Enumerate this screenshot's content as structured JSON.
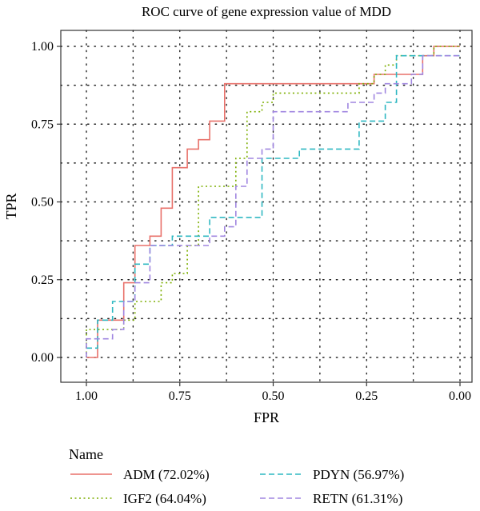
{
  "chart_data": {
    "type": "line",
    "title": "ROC curve of gene expression value of MDD",
    "xlabel": "FPR",
    "ylabel": "TPR",
    "xlim": [
      1.0,
      0.0
    ],
    "ylim": [
      0.0,
      1.0
    ],
    "x_reversed": true,
    "x_ticks": [
      "1.00",
      "0.75",
      "0.50",
      "0.25",
      "0.00"
    ],
    "y_ticks": [
      "0.00",
      "0.25",
      "0.50",
      "0.75",
      "1.00"
    ],
    "grid": "dotted",
    "legend_title": "Name",
    "legend_position": "bottom",
    "series": [
      {
        "name": "ADM (72.02%)",
        "color": "#e8716a",
        "dash": "solid",
        "points": [
          [
            1.0,
            0.0
          ],
          [
            0.97,
            0.0
          ],
          [
            0.97,
            0.12
          ],
          [
            0.9,
            0.12
          ],
          [
            0.9,
            0.24
          ],
          [
            0.87,
            0.24
          ],
          [
            0.87,
            0.36
          ],
          [
            0.83,
            0.36
          ],
          [
            0.83,
            0.39
          ],
          [
            0.8,
            0.39
          ],
          [
            0.8,
            0.48
          ],
          [
            0.77,
            0.48
          ],
          [
            0.77,
            0.61
          ],
          [
            0.73,
            0.61
          ],
          [
            0.73,
            0.67
          ],
          [
            0.7,
            0.67
          ],
          [
            0.7,
            0.7
          ],
          [
            0.67,
            0.7
          ],
          [
            0.67,
            0.76
          ],
          [
            0.63,
            0.76
          ],
          [
            0.63,
            0.88
          ],
          [
            0.23,
            0.88
          ],
          [
            0.23,
            0.91
          ],
          [
            0.1,
            0.91
          ],
          [
            0.1,
            0.97
          ],
          [
            0.07,
            0.97
          ],
          [
            0.07,
            1.0
          ],
          [
            0.0,
            1.0
          ]
        ]
      },
      {
        "name": "IGF2 (64.04%)",
        "color": "#7cae00",
        "dash": "dotted",
        "points": [
          [
            1.0,
            0.0
          ],
          [
            1.0,
            0.09
          ],
          [
            0.9,
            0.09
          ],
          [
            0.9,
            0.12
          ],
          [
            0.87,
            0.12
          ],
          [
            0.87,
            0.18
          ],
          [
            0.8,
            0.18
          ],
          [
            0.8,
            0.24
          ],
          [
            0.77,
            0.24
          ],
          [
            0.77,
            0.27
          ],
          [
            0.73,
            0.27
          ],
          [
            0.73,
            0.36
          ],
          [
            0.7,
            0.36
          ],
          [
            0.7,
            0.55
          ],
          [
            0.6,
            0.55
          ],
          [
            0.6,
            0.64
          ],
          [
            0.57,
            0.64
          ],
          [
            0.57,
            0.79
          ],
          [
            0.53,
            0.79
          ],
          [
            0.53,
            0.82
          ],
          [
            0.5,
            0.82
          ],
          [
            0.5,
            0.85
          ],
          [
            0.27,
            0.85
          ],
          [
            0.27,
            0.88
          ],
          [
            0.23,
            0.88
          ],
          [
            0.23,
            0.91
          ],
          [
            0.2,
            0.91
          ],
          [
            0.2,
            0.94
          ],
          [
            0.17,
            0.94
          ],
          [
            0.17,
            0.97
          ],
          [
            0.07,
            0.97
          ],
          [
            0.07,
            1.0
          ],
          [
            0.0,
            1.0
          ]
        ]
      },
      {
        "name": "PDYN (56.97%)",
        "color": "#2fb8c2",
        "dash": "dashed",
        "points": [
          [
            1.0,
            0.03
          ],
          [
            0.97,
            0.03
          ],
          [
            0.97,
            0.12
          ],
          [
            0.93,
            0.12
          ],
          [
            0.93,
            0.18
          ],
          [
            0.87,
            0.18
          ],
          [
            0.87,
            0.3
          ],
          [
            0.83,
            0.3
          ],
          [
            0.83,
            0.36
          ],
          [
            0.77,
            0.36
          ],
          [
            0.77,
            0.39
          ],
          [
            0.67,
            0.39
          ],
          [
            0.67,
            0.45
          ],
          [
            0.53,
            0.45
          ],
          [
            0.53,
            0.64
          ],
          [
            0.43,
            0.64
          ],
          [
            0.43,
            0.67
          ],
          [
            0.27,
            0.67
          ],
          [
            0.27,
            0.76
          ],
          [
            0.2,
            0.76
          ],
          [
            0.2,
            0.82
          ],
          [
            0.17,
            0.82
          ],
          [
            0.17,
            0.97
          ],
          [
            0.0,
            0.97
          ]
        ]
      },
      {
        "name": "RETN (61.31%)",
        "color": "#a086e0",
        "dash": "dashed",
        "points": [
          [
            1.0,
            0.0
          ],
          [
            1.0,
            0.06
          ],
          [
            0.93,
            0.06
          ],
          [
            0.93,
            0.09
          ],
          [
            0.9,
            0.09
          ],
          [
            0.9,
            0.18
          ],
          [
            0.87,
            0.18
          ],
          [
            0.87,
            0.24
          ],
          [
            0.83,
            0.24
          ],
          [
            0.83,
            0.36
          ],
          [
            0.67,
            0.36
          ],
          [
            0.67,
            0.39
          ],
          [
            0.63,
            0.39
          ],
          [
            0.63,
            0.42
          ],
          [
            0.6,
            0.42
          ],
          [
            0.6,
            0.55
          ],
          [
            0.57,
            0.55
          ],
          [
            0.57,
            0.64
          ],
          [
            0.53,
            0.64
          ],
          [
            0.53,
            0.67
          ],
          [
            0.5,
            0.67
          ],
          [
            0.5,
            0.79
          ],
          [
            0.3,
            0.79
          ],
          [
            0.3,
            0.82
          ],
          [
            0.23,
            0.82
          ],
          [
            0.23,
            0.85
          ],
          [
            0.2,
            0.85
          ],
          [
            0.2,
            0.88
          ],
          [
            0.13,
            0.88
          ],
          [
            0.13,
            0.91
          ],
          [
            0.1,
            0.91
          ],
          [
            0.1,
            0.97
          ],
          [
            0.0,
            0.97
          ]
        ]
      }
    ]
  }
}
